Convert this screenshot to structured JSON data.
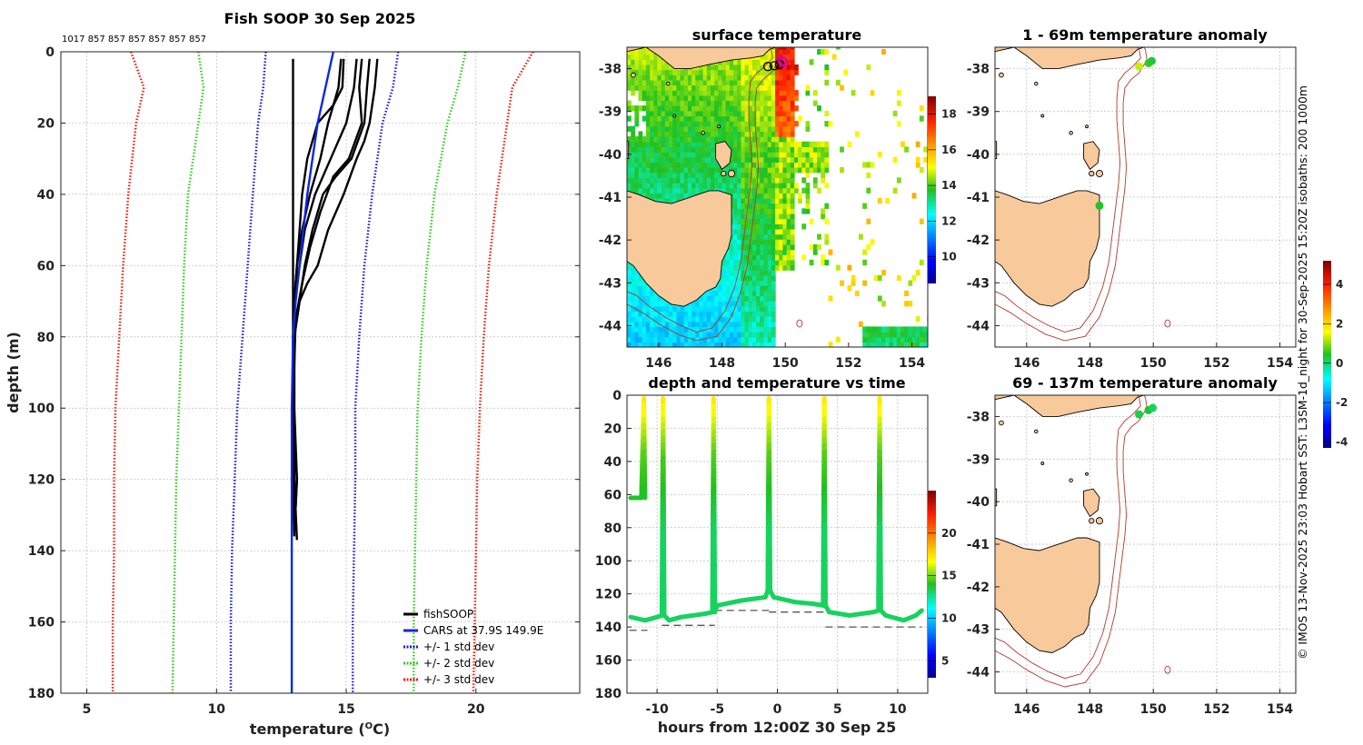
{
  "colors": {
    "fishsoop": "#000000",
    "cars": "#0a28e6",
    "sd1": "#1a1ad8",
    "sd2": "#33cc22",
    "sd3": "#e62010",
    "land": "#f8c99b",
    "isobath": "#b23a2a",
    "track": "#21c23a",
    "dashed": "#555555"
  },
  "profile_panel": {
    "title": "Fish SOOP 30 Sep 2025",
    "top_annotation": "1017 857 857 857 857 857 857",
    "chart_data": {
      "type": "line",
      "xlabel_main": "temperature (",
      "xlabel_sup": "O",
      "xlabel_end": "C)",
      "ylabel": "depth (m)",
      "xlim": [
        4,
        24
      ],
      "ylim": [
        180,
        0
      ],
      "xticks": [
        5,
        10,
        15,
        20
      ],
      "yticks": [
        0,
        20,
        40,
        60,
        80,
        100,
        120,
        140,
        160,
        180
      ],
      "legend": [
        {
          "label": "fishSOOP",
          "color": "#000000",
          "style": "solid"
        },
        {
          "label": "CARS at 37.9S 149.9E",
          "color": "#0a28e6",
          "style": "solid"
        },
        {
          "label": "+/- 1 std dev",
          "color": "#1a1ad8",
          "style": "dotted"
        },
        {
          "label": "+/- 2 std dev",
          "color": "#33cc22",
          "style": "dotted"
        },
        {
          "label": "+/- 3 std dev",
          "color": "#e62010",
          "style": "dotted"
        }
      ],
      "cars": {
        "depth": [
          0,
          10,
          20,
          30,
          40,
          50,
          60,
          70,
          80,
          100,
          120,
          140,
          160,
          180
        ],
        "temp": [
          14.5,
          14.2,
          13.9,
          13.7,
          13.5,
          13.35,
          13.2,
          13.05,
          12.95,
          12.9,
          12.9,
          12.9,
          12.9,
          12.9
        ]
      },
      "sd": [
        {
          "name": "+1",
          "color": "#1a1ad8",
          "depth": [
            0,
            10,
            20,
            40,
            60,
            80,
            100,
            120,
            140,
            160,
            180
          ],
          "temp": [
            17.0,
            16.8,
            16.4,
            16.0,
            15.7,
            15.5,
            15.35,
            15.35,
            15.3,
            15.25,
            15.25
          ]
        },
        {
          "name": "-1",
          "color": "#1a1ad8",
          "depth": [
            0,
            10,
            20,
            40,
            60,
            80,
            100,
            120,
            140,
            160,
            180
          ],
          "temp": [
            11.9,
            11.8,
            11.6,
            11.4,
            11.2,
            11.0,
            10.8,
            10.7,
            10.6,
            10.55,
            10.55
          ]
        },
        {
          "name": "+2",
          "color": "#33cc22",
          "depth": [
            0,
            10,
            20,
            40,
            60,
            80,
            100,
            120,
            140,
            160,
            180
          ],
          "temp": [
            19.6,
            19.3,
            18.9,
            18.4,
            18.1,
            17.9,
            17.75,
            17.7,
            17.65,
            17.6,
            17.6
          ]
        },
        {
          "name": "-2",
          "color": "#33cc22",
          "depth": [
            0,
            10,
            20,
            40,
            60,
            80,
            100,
            120,
            140,
            160,
            180
          ],
          "temp": [
            9.3,
            9.5,
            9.3,
            8.9,
            8.75,
            8.65,
            8.55,
            8.45,
            8.4,
            8.35,
            8.3
          ]
        },
        {
          "name": "+3",
          "color": "#e62010",
          "depth": [
            0,
            10,
            20,
            40,
            60,
            80,
            100,
            120,
            140,
            160,
            180
          ],
          "temp": [
            22.2,
            21.4,
            21.2,
            20.8,
            20.5,
            20.3,
            20.15,
            20.05,
            20.0,
            19.95,
            19.9
          ]
        },
        {
          "name": "-3",
          "color": "#e62010",
          "depth": [
            0,
            10,
            20,
            40,
            60,
            80,
            100,
            120,
            140,
            160,
            180
          ],
          "temp": [
            6.7,
            7.2,
            6.9,
            6.6,
            6.4,
            6.25,
            6.1,
            6.05,
            6.05,
            6.0,
            6.0
          ]
        }
      ],
      "fishsoop": [
        {
          "depth": [
            2,
            10,
            20,
            40,
            60,
            80,
            100,
            120,
            127
          ],
          "temp": [
            12.95,
            12.95,
            12.95,
            12.95,
            12.95,
            12.95,
            12.95,
            12.95,
            12.9
          ]
        },
        {
          "depth": [
            2,
            10,
            15,
            20,
            25,
            30,
            40,
            50,
            60,
            70,
            80,
            100,
            120,
            130
          ],
          "temp": [
            14.9,
            14.85,
            14.5,
            13.9,
            13.7,
            13.5,
            13.3,
            13.2,
            13.1,
            13.0,
            13.0,
            13.0,
            13.0,
            13.0
          ]
        },
        {
          "depth": [
            2,
            10,
            20,
            30,
            40,
            50,
            60,
            70,
            80,
            100,
            120,
            137
          ],
          "temp": [
            14.8,
            14.7,
            14.3,
            14.0,
            13.6,
            13.3,
            13.1,
            13.0,
            12.95,
            12.95,
            13.0,
            13.1
          ]
        },
        {
          "depth": [
            2,
            10,
            20,
            30,
            35,
            40,
            50,
            60,
            70,
            80,
            100,
            120,
            135
          ],
          "temp": [
            15.9,
            15.8,
            15.7,
            15.2,
            14.6,
            14.1,
            13.7,
            13.4,
            13.2,
            13.0,
            12.95,
            13.1,
            13.0
          ]
        },
        {
          "depth": [
            2,
            10,
            20,
            25,
            30,
            40,
            50,
            60,
            65,
            70,
            80,
            100,
            120,
            128
          ],
          "temp": [
            16.2,
            16.1,
            15.9,
            15.7,
            15.4,
            14.9,
            14.3,
            13.9,
            13.5,
            13.2,
            13.0,
            13.0,
            13.1,
            13.05
          ]
        },
        {
          "depth": [
            2,
            10,
            20,
            30,
            40,
            50,
            60,
            70,
            80,
            100,
            120,
            136
          ],
          "temp": [
            15.4,
            15.3,
            15.0,
            14.4,
            13.8,
            13.4,
            13.2,
            13.0,
            12.95,
            12.95,
            12.95,
            13.0
          ]
        },
        {
          "depth": [
            2,
            10,
            20,
            30,
            35,
            45,
            55,
            65,
            75,
            100,
            120,
            132
          ],
          "temp": [
            15.6,
            15.5,
            15.6,
            15.1,
            14.5,
            14.0,
            13.6,
            13.3,
            13.05,
            12.95,
            12.9,
            12.95
          ]
        }
      ]
    }
  },
  "sst_panel": {
    "title": "surface temperature",
    "chart_data": {
      "type": "heatmap",
      "xlim": [
        145,
        154.5
      ],
      "ylim": [
        -44.5,
        -37.5
      ],
      "xticks": [
        146,
        148,
        150,
        152,
        154
      ],
      "yticks": [
        -38,
        -39,
        -40,
        -41,
        -42,
        -43,
        -44
      ],
      "colorbar": {
        "min": 8.5,
        "max": 19,
        "ticks": [
          10,
          12,
          14,
          16,
          18
        ]
      }
    }
  },
  "time_panel": {
    "title": "depth and temperature vs time",
    "chart_data": {
      "type": "line",
      "xlabel": "hours from 12:00Z 30 Sep 25",
      "xlim": [
        -12.5,
        12.5
      ],
      "ylim": [
        180,
        0
      ],
      "xticks": [
        -10,
        -5,
        0,
        5,
        10
      ],
      "yticks": [
        0,
        20,
        40,
        60,
        80,
        100,
        120,
        140,
        160,
        180
      ],
      "colorbar": {
        "min": 3,
        "max": 25,
        "ticks": [
          5,
          10,
          15,
          20
        ]
      },
      "casts": [
        {
          "hours": [
            -12.2,
            -11.3,
            -11.1,
            -11.0
          ],
          "depth": [
            62,
            62,
            2,
            62
          ]
        },
        {
          "hours": [
            -12.2,
            -11.0,
            -10.0,
            -9.6,
            -9.5,
            -9.4,
            -9.0,
            -8.0,
            -6.0,
            -5.4,
            -5.3,
            -5.2,
            -5.0,
            -3.0,
            -1.0,
            -0.8,
            -0.7,
            -0.6,
            -0.3,
            1.5,
            3.0,
            3.8,
            3.9,
            4.0,
            4.3,
            6.0,
            8.0,
            8.4,
            8.5,
            8.6,
            9.0,
            10.5,
            11.5,
            12.0
          ],
          "depth": [
            134,
            136,
            134,
            133,
            2,
            133,
            136,
            134,
            132,
            131,
            2,
            131,
            127,
            124,
            122,
            118,
            2,
            118,
            122,
            125,
            126,
            127,
            2,
            127,
            131,
            133,
            131,
            130,
            2,
            130,
            133,
            136,
            133,
            130
          ]
        }
      ],
      "bottom_segments": [
        {
          "h0": -12.3,
          "h1": -10.8,
          "depth": 142
        },
        {
          "h0": -9.6,
          "h1": -5.2,
          "depth": 139
        },
        {
          "h0": -5.2,
          "h1": -0.7,
          "depth": 130
        },
        {
          "h0": -0.7,
          "h1": 3.9,
          "depth": 131
        },
        {
          "h0": 4.0,
          "h1": 12.0,
          "depth": 140
        }
      ]
    }
  },
  "anomaly_top": {
    "title": "1 - 69m temperature anomaly",
    "chart_data": {
      "type": "scatter",
      "xlim": [
        145,
        154.5
      ],
      "ylim": [
        -44.5,
        -37.5
      ],
      "xticks": [
        146,
        148,
        150,
        152,
        154
      ],
      "yticks": [
        -38,
        -39,
        -40,
        -41,
        -42,
        -43,
        -44
      ],
      "points": [
        {
          "lon": 149.55,
          "lat": -37.95,
          "anom": 1.3
        },
        {
          "lon": 149.85,
          "lat": -37.87,
          "anom": 0.6
        },
        {
          "lon": 149.95,
          "lat": -37.82,
          "anom": 0.3
        },
        {
          "lon": 148.3,
          "lat": -41.2,
          "anom": 0.4
        }
      ]
    }
  },
  "anomaly_bottom": {
    "title": "69 - 137m temperature anomaly",
    "chart_data": {
      "type": "scatter",
      "xlim": [
        145,
        154.5
      ],
      "ylim": [
        -44.5,
        -37.5
      ],
      "xticks": [
        146,
        148,
        150,
        152,
        154
      ],
      "yticks": [
        -38,
        -39,
        -40,
        -41,
        -42,
        -43,
        -44
      ],
      "points": [
        {
          "lon": 149.55,
          "lat": -37.95,
          "anom": 0.2
        },
        {
          "lon": 149.85,
          "lat": -37.85,
          "anom": 0.4
        },
        {
          "lon": 149.98,
          "lat": -37.8,
          "anom": 0.1
        }
      ]
    }
  },
  "anomaly_colorbar": {
    "min": -4.3,
    "max": 5.2,
    "ticks": [
      4,
      2,
      0,
      -2,
      -4
    ],
    "tick_labels": [
      "4",
      "2",
      "0",
      "-2",
      "-4"
    ]
  },
  "side_caption": "© IMOS 13-Nov-2025 23:03 Hobart SST: L3SM-1d_night for 30-Sep-2025 15:20Z isobaths: 200  1000m"
}
